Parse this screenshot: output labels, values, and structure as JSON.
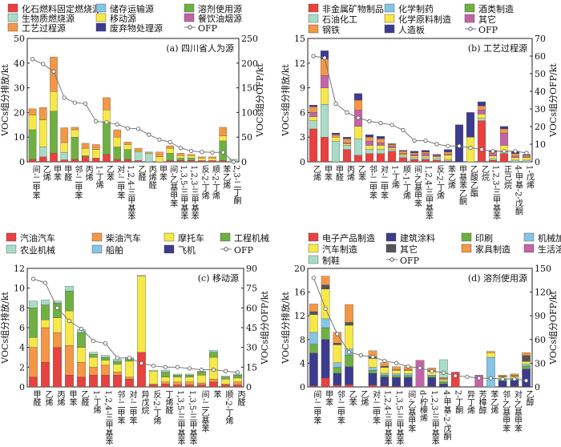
{
  "chart_data": [
    {
      "type": "bar",
      "panel_label": "(a) 四川省人为源",
      "ylabel": "VOCs组分排放/kt",
      "y2label": "VOCs组分OFP/kt",
      "ylim": [
        0,
        50
      ],
      "yticks": [
        0,
        10,
        20,
        30,
        40,
        50
      ],
      "y2lim": [
        0,
        250
      ],
      "y2ticks": [
        0,
        50,
        100,
        150,
        200,
        250
      ],
      "categories": [
        "间-二甲苯",
        "乙烯",
        "甲苯",
        "甲醛",
        "邻-二甲苯",
        "丙烯",
        "1-丁烯",
        "乙苯",
        "对-二甲苯",
        "1,2,4-三甲基苯",
        "乙醛",
        "丙烯醛",
        "甲苯",
        "间-乙基甲苯",
        "1,3,5-三甲基苯",
        "1,2,3-三甲基苯",
        "反-2-丁烯",
        "顺-2-丁烯",
        "苯乙烯",
        "2,3-二丁酮"
      ],
      "series": [
        {
          "name": "化石燃料固定燃烧源",
          "color": "#e8413e",
          "values": [
            1.0,
            2.0,
            3.5,
            0.8,
            1.0,
            2.0,
            1.5,
            3.0,
            1.0,
            1.0,
            0.5,
            0,
            0,
            0.5,
            0.5,
            0.5,
            0.5,
            0.5,
            0.5,
            0
          ]
        },
        {
          "name": "储存运输源",
          "color": "#85c5e5",
          "values": [
            0,
            0,
            0,
            0,
            0,
            0,
            0,
            0,
            0,
            0,
            0,
            0,
            0,
            0,
            0,
            0,
            0,
            0,
            0,
            0
          ]
        },
        {
          "name": "溶剂使用源",
          "color": "#6fb043",
          "values": [
            12,
            0,
            17,
            0,
            9,
            0.5,
            0,
            13,
            5,
            4,
            0,
            0,
            0,
            3,
            1,
            1,
            0,
            0,
            8,
            0
          ]
        },
        {
          "name": "生物质燃烧源",
          "color": "#a8dcc6",
          "values": [
            0,
            4,
            0,
            3,
            0,
            0,
            0,
            0,
            0,
            0,
            3.5,
            3.5,
            0,
            0,
            0,
            0,
            0,
            0,
            0,
            1
          ]
        },
        {
          "name": "移动源",
          "color": "#f7e84a",
          "values": [
            6,
            11,
            8,
            4,
            3,
            3,
            3.5,
            5,
            4,
            2,
            0.5,
            0,
            2,
            2,
            1,
            1,
            1,
            1,
            2,
            0
          ]
        },
        {
          "name": "餐饮油烟源",
          "color": "#c264a8",
          "values": [
            0,
            0,
            0,
            0,
            0,
            0,
            0,
            0,
            0,
            0,
            0,
            0,
            0,
            0,
            0,
            0,
            0,
            0,
            0,
            0
          ]
        },
        {
          "name": "工艺过程源",
          "color": "#f39747",
          "values": [
            2.5,
            5,
            14,
            6,
            1,
            2,
            2,
            5,
            3,
            1,
            1,
            0.5,
            2,
            1,
            1,
            0.5,
            0.5,
            0.5,
            3.5,
            0
          ]
        },
        {
          "name": "废弃物处理源",
          "color": "#3c3b8e",
          "values": [
            0,
            0,
            0,
            0,
            0,
            0,
            0,
            0,
            0,
            0,
            0,
            0,
            0,
            0,
            0,
            0,
            0,
            0,
            0,
            0
          ]
        }
      ],
      "ofp": {
        "name": "OFP",
        "values": [
          208,
          198,
          183,
          130,
          120,
          118,
          82,
          80,
          76,
          68,
          67,
          55,
          45,
          40,
          28,
          22,
          20,
          19,
          19,
          0
        ]
      }
    },
    {
      "type": "bar",
      "panel_label": "(b) 工艺过程源",
      "ylabel": "VOCs组分排放/kt",
      "y2label": "VOCs组分OFP/kt",
      "ylim": [
        0,
        15
      ],
      "yticks": [
        0,
        3,
        6,
        9,
        12,
        15
      ],
      "y2lim": [
        0,
        70
      ],
      "y2ticks": [
        0,
        10,
        20,
        30,
        40,
        50,
        60,
        70
      ],
      "categories": [
        "乙烯",
        "甲苯",
        "甲醛",
        "丙烯",
        "乙苯",
        "邻-二甲苯",
        "对-二甲苯",
        "1-丁烯",
        "顺-1-丁烯",
        "间-乙基甲苯",
        "1,2,4-三甲基苯",
        "反-2-丁烯",
        "苯乙烯",
        "甲基苯乙酮",
        "乙酸乙酯",
        "乙烷",
        "1,2,3-三甲基苯",
        "正己烷",
        "4-甲基-2-戊酮",
        "1-戊烯"
      ],
      "series": [
        {
          "name": "非金属矿物制品",
          "color": "#e8413e",
          "values": [
            4,
            3,
            0,
            1.5,
            0.8,
            1.0,
            1.0,
            1.3,
            0.5,
            0.3,
            0.3,
            0.2,
            0.1,
            0,
            0,
            5,
            0.2,
            1.0,
            0,
            0
          ]
        },
        {
          "name": "化学制药",
          "color": "#85c5e5",
          "values": [
            0,
            0,
            0,
            0,
            0,
            0,
            0,
            0,
            0,
            0,
            0,
            0,
            0,
            0,
            0,
            0,
            0,
            0,
            0,
            0
          ]
        },
        {
          "name": "酒类制造",
          "color": "#6fb043",
          "values": [
            0,
            0,
            0,
            0,
            0,
            0,
            0,
            0,
            0,
            0,
            0,
            0,
            0,
            0,
            0,
            0,
            0,
            0,
            0,
            0
          ]
        },
        {
          "name": "石油化工",
          "color": "#a8dcc6",
          "values": [
            1,
            4,
            2.5,
            0.5,
            2,
            0.5,
            0.5,
            0.2,
            0.2,
            0.2,
            0.2,
            0.2,
            0.2,
            0,
            0,
            0.3,
            0.2,
            0.2,
            0.2,
            0.2
          ]
        },
        {
          "name": "化学原料制造",
          "color": "#f7e84a",
          "values": [
            0.5,
            2,
            0.5,
            0.2,
            1.5,
            0.5,
            0.5,
            0.2,
            0.2,
            0.2,
            0.2,
            0.2,
            0.5,
            0,
            3,
            0.5,
            0.3,
            0.8,
            0.3,
            0.3
          ]
        },
        {
          "name": "其它",
          "color": "#c264a8",
          "values": [
            0.5,
            1.5,
            0,
            0.1,
            2,
            0.5,
            0.3,
            0.2,
            0.1,
            0.2,
            0.3,
            0.1,
            0.1,
            0,
            0,
            0.5,
            0.3,
            1.5,
            0.2,
            0.1
          ]
        },
        {
          "name": "钢铁",
          "color": "#f39747",
          "values": [
            0.7,
            2,
            0.3,
            0.5,
            1.2,
            0.5,
            0.5,
            0.2,
            0.3,
            0.2,
            0.2,
            0.1,
            0.3,
            0,
            0,
            0.5,
            0.2,
            0.5,
            0.3,
            0.2
          ]
        },
        {
          "name": "人造板",
          "color": "#3c3b8e",
          "values": [
            0.2,
            1,
            0.2,
            0.2,
            0.8,
            0.3,
            0.3,
            0.1,
            0.1,
            0.2,
            0.2,
            0.1,
            0.3,
            4.5,
            3,
            0.5,
            0.2,
            0.3,
            0.3,
            0.1
          ]
        }
      ],
      "ofp": {
        "name": "OFP",
        "values": [
          60,
          59,
          33,
          28,
          25,
          23,
          22,
          21,
          18,
          12,
          12,
          10,
          9,
          9,
          8,
          7,
          6,
          6,
          6,
          5
        ]
      }
    },
    {
      "type": "bar",
      "panel_label": "(c) 移动源",
      "ylabel": "VOCs组分排放/kt",
      "y2label": "VOCs组分OFP/kt",
      "ylim": [
        0,
        12
      ],
      "yticks": [
        0,
        2,
        4,
        6,
        8,
        10,
        12
      ],
      "y2lim": [
        0,
        90
      ],
      "y2ticks": [
        0,
        15,
        30,
        45,
        60,
        75,
        90
      ],
      "categories": [
        "甲醛",
        "乙烯",
        "丙烯",
        "甲苯",
        "乙醛",
        "1-丁烯",
        "1,2,4-三甲基苯",
        "邻-二甲苯",
        "对-二甲苯",
        "异戊烷",
        "反-2-丁烯",
        "丁烯醛",
        "1,3,5-三甲基苯",
        "1,3,5-三甲基苯",
        "间-二乙基苯",
        "苯",
        "顺-2-丁烯",
        "丙醛"
      ],
      "series": [
        {
          "name": "汽油汽车",
          "color": "#e8413e",
          "values": [
            1,
            2.5,
            4,
            1.2,
            1,
            1.2,
            1.2,
            1.2,
            0.8,
            3.5,
            0.2,
            0.3,
            0.2,
            0.2,
            0.2,
            0.5,
            0.2,
            0.2
          ]
        },
        {
          "name": "柴油汽车",
          "color": "#f39747",
          "values": [
            3,
            3.5,
            1.5,
            3,
            1.5,
            0.8,
            1,
            0.3,
            0.2,
            0,
            0.1,
            0.2,
            0.3,
            0.3,
            0.2,
            0.3,
            0.1,
            0.3
          ]
        },
        {
          "name": "摩托车",
          "color": "#f7e84a",
          "values": [
            1,
            0.8,
            1.5,
            3.5,
            1.5,
            1,
            0.5,
            0.8,
            1.6,
            7.7,
            1.3,
            0.5,
            0.5,
            0.5,
            0.8,
            2.2,
            0.5,
            0.4
          ]
        },
        {
          "name": "工程机械",
          "color": "#6fb043",
          "values": [
            3,
            1.5,
            1.5,
            2,
            1.5,
            0.3,
            0.3,
            0.3,
            0.2,
            0,
            0,
            0.5,
            0.2,
            0.2,
            0.3,
            0.5,
            0.2,
            0.3
          ]
        },
        {
          "name": "农业机械",
          "color": "#a8dcc6",
          "values": [
            0.7,
            0.5,
            0.2,
            0.5,
            0.3,
            0.2,
            0.2,
            0.2,
            0.2,
            0.1,
            0.1,
            0.2,
            0.1,
            0.1,
            0.1,
            0.2,
            0.1,
            0.1
          ]
        },
        {
          "name": "船舶",
          "color": "#85c5e5",
          "values": [
            0,
            0,
            0,
            0,
            0,
            0,
            0,
            0,
            0,
            0,
            0,
            0,
            0,
            0,
            0,
            0,
            0,
            0
          ]
        },
        {
          "name": "飞机",
          "color": "#3c3b8e",
          "values": [
            0,
            0,
            0,
            0,
            0,
            0,
            0,
            0,
            0,
            0,
            0,
            0,
            0,
            0,
            0,
            0,
            0,
            0
          ]
        }
      ],
      "ofp": {
        "name": "OFP",
        "values": [
          82,
          79,
          60,
          50,
          44,
          35,
          33,
          22,
          22,
          18,
          16,
          15,
          15,
          14,
          13,
          13,
          12,
          11
        ]
      }
    },
    {
      "type": "bar",
      "panel_label": "(d) 溶剂使用源",
      "ylabel": "VOCs组分排放/kt",
      "y2label": "VOCs组分OFP/kt",
      "ylim": [
        0,
        20
      ],
      "yticks": [
        0,
        4,
        8,
        12,
        16,
        20
      ],
      "y2lim": [
        0,
        150
      ],
      "y2ticks": [
        0,
        30,
        60,
        90,
        120,
        150
      ],
      "categories": [
        "间-二甲苯",
        "甲苯",
        "邻-二甲苯",
        "乙苯",
        "乙烯",
        "对-二甲苯",
        "1,2,4-三甲基苯",
        "1,3,5-三甲基苯",
        "间-乙基甲苯",
        "d-柠檬烯",
        "1,2,3-三甲基苯",
        "4-甲基-2-戊酮",
        "2-丁酮",
        "异丁烯",
        "芳樟醇",
        "苯乙烯",
        "邻-乙基甲苯",
        "对-乙基甲苯",
        "乙醇"
      ],
      "series": [
        {
          "name": "电子产品制造",
          "color": "#e8413e",
          "values": [
            0.2,
            1.5,
            0.3,
            0.4,
            0,
            0.3,
            0.2,
            0.1,
            0.1,
            0,
            0.1,
            0,
            2.5,
            0,
            0,
            0,
            0,
            0.1,
            0
          ]
        },
        {
          "name": "建筑涂料",
          "color": "#3c3b8e",
          "values": [
            5.5,
            6.5,
            2,
            3,
            0,
            2,
            1.5,
            1.5,
            1.5,
            0,
            1.5,
            0.5,
            0,
            0,
            0,
            0,
            1,
            1,
            3
          ]
        },
        {
          "name": "印刷",
          "color": "#6fb043",
          "values": [
            1.5,
            2,
            1,
            2,
            0,
            0.5,
            0.3,
            0.3,
            0.3,
            0,
            0.2,
            0.3,
            0,
            0,
            0,
            0,
            0.2,
            0.2,
            0.5
          ]
        },
        {
          "name": "机械加工",
          "color": "#85c5e5",
          "values": [
            2,
            1.5,
            0.8,
            1,
            0,
            0.5,
            0.3,
            0.3,
            0.3,
            0,
            0.2,
            0.2,
            0,
            0,
            0,
            5,
            0.2,
            0.2,
            0.3
          ]
        },
        {
          "name": "汽车制造",
          "color": "#f7e84a",
          "values": [
            3,
            5,
            3,
            4,
            0,
            1.5,
            1,
            0.6,
            0.6,
            0,
            0.6,
            0.3,
            0,
            0,
            0,
            0.8,
            0.3,
            0.3,
            0.5
          ]
        },
        {
          "name": "其它",
          "color": "#555555",
          "values": [
            0.5,
            0.7,
            0.3,
            0.5,
            0,
            0.3,
            0.2,
            0.1,
            0.1,
            0,
            0.1,
            0.1,
            0,
            0,
            0,
            0,
            0.1,
            0.1,
            1
          ]
        },
        {
          "name": "家具制造",
          "color": "#f39747",
          "values": [
            1.3,
            1.5,
            1.8,
            3,
            0,
            1,
            0.6,
            0.5,
            0.5,
            0,
            0.5,
            0.2,
            0,
            0,
            0,
            0.2,
            0.2,
            0.3,
            0.5
          ]
        },
        {
          "name": "生活溶剂",
          "color": "#c264a8",
          "values": [
            0,
            0,
            0,
            0,
            0,
            0,
            0,
            0,
            0,
            4.5,
            0,
            0,
            0,
            0,
            2,
            0,
            0,
            0,
            0
          ]
        },
        {
          "name": "制鞋",
          "color": "#a8dcc6",
          "values": [
            0,
            0,
            0,
            0,
            0,
            0,
            0,
            0,
            0,
            0,
            0,
            3,
            0,
            0,
            0,
            0,
            0,
            0,
            0
          ]
        }
      ],
      "ofp": {
        "name": "OFP",
        "values": [
          138,
          99,
          67,
          44,
          40,
          38,
          33,
          30,
          26,
          24,
          20,
          18,
          14,
          13,
          11,
          11,
          10,
          10,
          8
        ]
      }
    }
  ]
}
